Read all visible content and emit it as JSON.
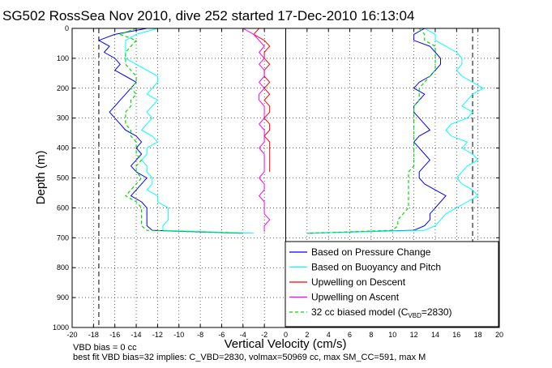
{
  "chart_data": {
    "type": "line",
    "title": "SG502 RossSea Nov 2010, dive 252 started 17-Dec-2010 16:13:04",
    "xlabel": "Vertical Velocity (cm/s)",
    "ylabel": "Depth (m)",
    "xlim": [
      -20,
      20
    ],
    "ylim": [
      0,
      1000
    ],
    "y_reversed": true,
    "grid": true,
    "legend_position": "bottom-right",
    "xticks": [
      "-20",
      "-18",
      "-16",
      "-14",
      "-12",
      "-10",
      "-8",
      "-6",
      "-4",
      "-2",
      "0",
      "2",
      "4",
      "6",
      "8",
      "10",
      "12",
      "14",
      "16",
      "18",
      "20"
    ],
    "yticks": [
      "0",
      "100",
      "200",
      "300",
      "400",
      "500",
      "600",
      "700",
      "800",
      "900",
      "1000"
    ],
    "vertical_lines": {
      "dashed": [
        -17.5,
        17.5
      ],
      "solid": [
        0
      ]
    },
    "series": [
      {
        "name": "Based on Pressure Change",
        "color": "#0000ff",
        "depth": [
          0,
          20,
          40,
          60,
          80,
          100,
          120,
          140,
          160,
          180,
          200,
          220,
          240,
          260,
          280,
          300,
          320,
          340,
          360,
          380,
          400,
          420,
          440,
          460,
          480,
          500,
          520,
          540,
          560,
          580,
          600,
          620,
          640,
          660,
          675,
          685
        ],
        "descent": [
          -13,
          -16,
          -17.5,
          -16.5,
          -17,
          -16,
          -15.5,
          -16,
          -15,
          -14,
          -14.5,
          -15,
          -15.5,
          -16,
          -16.5,
          -16,
          -15.5,
          -15,
          -14,
          -13.5,
          -14,
          -13.5,
          -14,
          -14.5,
          -14,
          -13,
          -13.5,
          -14,
          -14.5,
          -13.5,
          -13,
          -13,
          -13,
          -13,
          -12.5,
          -4
        ],
        "ascent": [
          13,
          12,
          12,
          13.5,
          14,
          14.5,
          14.5,
          14,
          13.5,
          12.5,
          12,
          13,
          12.5,
          12,
          12,
          12.5,
          13,
          13.5,
          12.5,
          12,
          12.5,
          13,
          13.5,
          13,
          12.5,
          12.5,
          13,
          14,
          15,
          14.5,
          14,
          13.5,
          13.5,
          13,
          12,
          2
        ]
      },
      {
        "name": "Based on Buoyancy and Pitch",
        "color": "#00ffff",
        "depth": [
          0,
          20,
          40,
          60,
          80,
          100,
          120,
          140,
          160,
          180,
          200,
          220,
          240,
          260,
          280,
          300,
          320,
          340,
          360,
          380,
          400,
          420,
          440,
          460,
          480,
          500,
          520,
          540,
          560,
          580,
          600,
          620,
          640,
          660,
          675,
          685
        ],
        "descent": [
          -12,
          -14,
          -15,
          -15,
          -15,
          -15,
          -14,
          -13,
          -12,
          -12,
          -12.5,
          -13,
          -12,
          -12.5,
          -13,
          -12.5,
          -13,
          -13.5,
          -12.5,
          -12,
          -13,
          -13,
          -13.5,
          -13,
          -13,
          -12.5,
          -12.5,
          -13,
          -12,
          -12,
          -11,
          -11,
          -11,
          -11.5,
          -11.5,
          -3
        ],
        "ascent": [
          13,
          14,
          14,
          15,
          16,
          16.5,
          16.5,
          16,
          16.5,
          17.5,
          18.5,
          17.5,
          17,
          16.5,
          17.5,
          17,
          15.5,
          15,
          15.5,
          17,
          16.5,
          17.5,
          18,
          17,
          16.5,
          16,
          16.5,
          17.5,
          18,
          17,
          16,
          15,
          14.5,
          14,
          13,
          2
        ]
      },
      {
        "name": "Upwelling on Descent",
        "color": "#ff0000",
        "depth": [
          0,
          20,
          40,
          60,
          80,
          100,
          120,
          140,
          160,
          180,
          200,
          220,
          240,
          260,
          280,
          300,
          320,
          340,
          360,
          380,
          400,
          420,
          440,
          460,
          480
        ],
        "values": [
          -2.5,
          -3,
          -2,
          -1.5,
          -2,
          -2,
          -1.5,
          -2,
          -2,
          -1.5,
          -2,
          -1.5,
          -2,
          -1.5,
          -1.5,
          -2,
          -1.5,
          -1.5,
          -2,
          -1.5,
          -1.5,
          -1.5,
          -1.5,
          -1.5,
          -1.5
        ]
      },
      {
        "name": "Upwelling on Ascent",
        "color": "#ff00ff",
        "depth": [
          0,
          20,
          40,
          60,
          80,
          100,
          120,
          140,
          160,
          180,
          200,
          220,
          240,
          260,
          280,
          300,
          320,
          340,
          360,
          380,
          400,
          420,
          440,
          460,
          480,
          500,
          520,
          540,
          560,
          580,
          600,
          620,
          640,
          660,
          680
        ],
        "values": [
          -4,
          -3,
          -2.5,
          -2,
          -2.5,
          -2,
          -2.5,
          -2,
          -2,
          -2.5,
          -2,
          -2.5,
          -2.5,
          -2,
          -2,
          -2,
          -2.5,
          -2,
          -2,
          -2,
          -2.5,
          -2,
          -2,
          -2,
          -2,
          -2.5,
          -2,
          -2,
          -2.5,
          -2,
          -2,
          -2,
          -1.5,
          -2,
          -2
        ]
      },
      {
        "name": "32 cc biased model (C_VBD=2830)",
        "color": "#00dd00",
        "dashed": true,
        "depth": [
          0,
          20,
          40,
          60,
          80,
          100,
          120,
          140,
          160,
          180,
          200,
          220,
          240,
          260,
          280,
          300,
          320,
          340,
          360,
          380,
          400,
          420,
          440,
          460,
          480,
          500,
          520,
          540,
          560,
          580,
          600,
          620,
          640,
          660,
          675,
          685
        ],
        "descent": [
          -14,
          -15.5,
          -14,
          -14.5,
          -15,
          -15,
          -15,
          -14.5,
          -14,
          -14,
          -14.5,
          -14,
          -14.5,
          -14.5,
          -15,
          -15,
          -15,
          -14.5,
          -14.5,
          -14,
          -14,
          -14,
          -13.5,
          -14,
          -14,
          -13.5,
          -14,
          -14.5,
          -15,
          -14,
          -13.5,
          -13.5,
          -13.5,
          -13.5,
          -13,
          -4
        ],
        "ascent": [
          12.5,
          13,
          13,
          14,
          14,
          14,
          14,
          14,
          13.5,
          13,
          12.5,
          12.5,
          12.5,
          12,
          12,
          12,
          12,
          12,
          12,
          12,
          12,
          12,
          12,
          12,
          11.5,
          11.5,
          11.5,
          11.5,
          11.5,
          11.5,
          11.5,
          11,
          10.5,
          10.5,
          10,
          2
        ]
      }
    ],
    "legend": [
      {
        "label": "Based on Pressure Change",
        "color": "#0000ff",
        "dashed": false
      },
      {
        "label": "Based on Buoyancy and Pitch",
        "color": "#00ffff",
        "dashed": false
      },
      {
        "label": "Upwelling on Descent",
        "color": "#ff0000",
        "dashed": false
      },
      {
        "label": "Upwelling on Ascent",
        "color": "#ff00ff",
        "dashed": false
      },
      {
        "label": "32 cc biased model (C",
        "sub": "VBD",
        "tail": "=2830)",
        "color": "#00dd00",
        "dashed": true
      }
    ],
    "annotations": [
      "VBD bias = 0 cc",
      "best fit VBD bias=32 implies: C_VBD=2830, volmax=50969 cc, max SM_CC=591, max M"
    ]
  }
}
